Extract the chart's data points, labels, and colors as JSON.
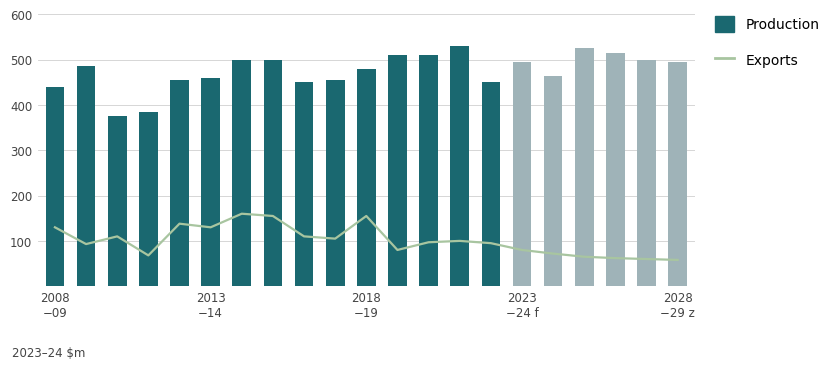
{
  "production_values": [
    440,
    485,
    375,
    385,
    455,
    460,
    500,
    500,
    450,
    455,
    480,
    510,
    510,
    530,
    450,
    495,
    465,
    525,
    515,
    500,
    495
  ],
  "export_values": [
    130,
    93,
    110,
    68,
    138,
    130,
    160,
    155,
    110,
    105,
    155,
    80,
    97,
    100,
    95,
    80,
    72,
    65,
    62,
    60,
    58
  ],
  "bar_color_historic": "#1a6870",
  "bar_color_forecast": "#9fb3b8",
  "export_line_color": "#a8c5a0",
  "n_historic": 15,
  "n_forecast": 6,
  "ylim": [
    0,
    600
  ],
  "yticks": [
    100,
    200,
    300,
    400,
    500,
    600
  ],
  "ylabel": "2023–24 $m",
  "grid_color": "#d0d0d0",
  "background_color": "#ffffff",
  "tick_label_fontsize": 8.5,
  "tick_positions": [
    0,
    5,
    10,
    15,
    20
  ],
  "tick_labels_top": [
    "2008",
    "2013",
    "2018",
    "2023",
    "2028"
  ],
  "tick_labels_bot": [
    "−09",
    "−14",
    "−19",
    "−24 f",
    "−29 z"
  ],
  "legend_production": "Production",
  "legend_exports": "Exports",
  "bar_width": 0.6
}
